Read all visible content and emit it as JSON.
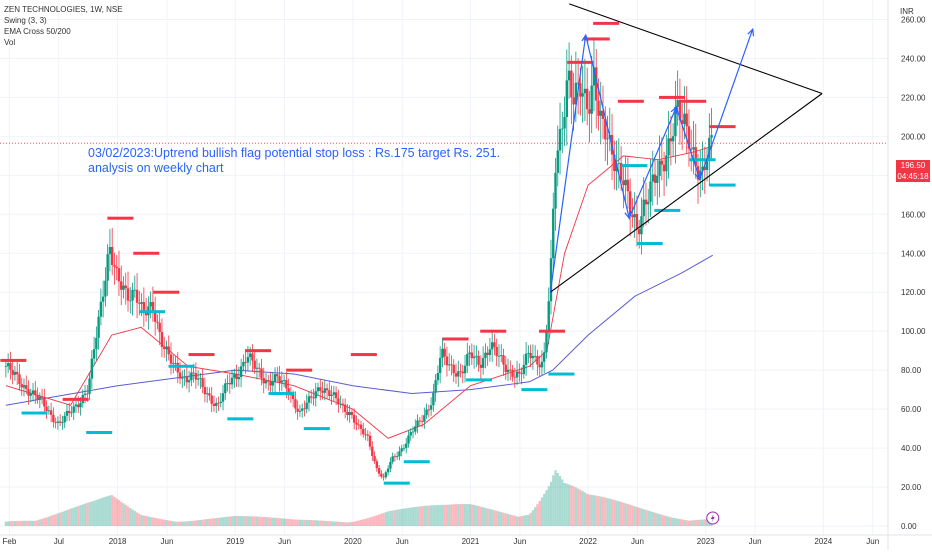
{
  "header": {
    "symbol": "ZEN TECHNOLOGIES, 1W, NSE",
    "indicators": [
      "Swing (3, 3)",
      "EMA Cross 50/200",
      "Vol"
    ]
  },
  "annotation": {
    "line1": "03/02/2023:Uptrend bullish flag potential stop loss : Rs.175 target Rs. 251.",
    "line2": "analysis on weekly chart"
  },
  "price_tag": {
    "price": "196.50",
    "countdown": "04:45:18"
  },
  "colors": {
    "up": "#089981",
    "down": "#f23645",
    "ema50": "#f23645",
    "ema200": "#5b5bd6",
    "swing_high": "#f23645",
    "swing_low": "#00bcd4",
    "drawing_blue": "#2962ff",
    "drawing_black": "#000000",
    "price_line": "#f23645"
  },
  "chart_data": {
    "type": "candlestick",
    "title": "ZEN TECHNOLOGIES, 1W, NSE",
    "y_axis": {
      "unit": "INR",
      "ylim": [
        0,
        270
      ],
      "ticks": [
        "260.00",
        "240.00",
        "220.00",
        "200.00",
        "180.00",
        "160.00",
        "140.00",
        "120.00",
        "100.00",
        "80.00",
        "60.00",
        "40.00",
        "20.00",
        "0.00"
      ]
    },
    "x_axis": {
      "ticks": [
        {
          "label": "Feb",
          "t": 2017.08
        },
        {
          "label": "Jul",
          "t": 2017.5
        },
        {
          "label": "2018",
          "t": 2018.0
        },
        {
          "label": "Jun",
          "t": 2018.42
        },
        {
          "label": "2019",
          "t": 2019.0
        },
        {
          "label": "Jun",
          "t": 2019.42
        },
        {
          "label": "2020",
          "t": 2020.0
        },
        {
          "label": "Jun",
          "t": 2020.42
        },
        {
          "label": "2021",
          "t": 2021.0
        },
        {
          "label": "Jun",
          "t": 2021.42
        },
        {
          "label": "2022",
          "t": 2022.0
        },
        {
          "label": "Jun",
          "t": 2022.42
        },
        {
          "label": "2023",
          "t": 2023.0
        },
        {
          "label": "Jun",
          "t": 2023.42
        },
        {
          "label": "2024",
          "t": 2024.0
        },
        {
          "label": "Jun",
          "t": 2024.42
        }
      ]
    },
    "last_price": 196.5,
    "close_path": [
      [
        2017.05,
        82
      ],
      [
        2017.2,
        72
      ],
      [
        2017.35,
        64
      ],
      [
        2017.5,
        52
      ],
      [
        2017.62,
        60
      ],
      [
        2017.75,
        70
      ],
      [
        2017.85,
        110
      ],
      [
        2017.93,
        145
      ],
      [
        2018.0,
        125
      ],
      [
        2018.08,
        118
      ],
      [
        2018.15,
        122
      ],
      [
        2018.22,
        108
      ],
      [
        2018.3,
        112
      ],
      [
        2018.38,
        95
      ],
      [
        2018.47,
        82
      ],
      [
        2018.55,
        76
      ],
      [
        2018.65,
        78
      ],
      [
        2018.75,
        68
      ],
      [
        2018.85,
        62
      ],
      [
        2018.93,
        72
      ],
      [
        2019.02,
        78
      ],
      [
        2019.1,
        88
      ],
      [
        2019.18,
        80
      ],
      [
        2019.27,
        74
      ],
      [
        2019.35,
        76
      ],
      [
        2019.45,
        70
      ],
      [
        2019.55,
        58
      ],
      [
        2019.63,
        64
      ],
      [
        2019.72,
        72
      ],
      [
        2019.8,
        68
      ],
      [
        2019.9,
        62
      ],
      [
        2019.98,
        58
      ],
      [
        2020.05,
        50
      ],
      [
        2020.13,
        45
      ],
      [
        2020.2,
        30
      ],
      [
        2020.26,
        24
      ],
      [
        2020.33,
        34
      ],
      [
        2020.42,
        40
      ],
      [
        2020.5,
        48
      ],
      [
        2020.6,
        56
      ],
      [
        2020.68,
        66
      ],
      [
        2020.75,
        88
      ],
      [
        2020.83,
        82
      ],
      [
        2020.92,
        78
      ],
      [
        2021.0,
        88
      ],
      [
        2021.08,
        84
      ],
      [
        2021.17,
        92
      ],
      [
        2021.25,
        86
      ],
      [
        2021.33,
        80
      ],
      [
        2021.42,
        76
      ],
      [
        2021.5,
        90
      ],
      [
        2021.56,
        86
      ],
      [
        2021.62,
        82
      ],
      [
        2021.68,
        125
      ],
      [
        2021.72,
        185
      ],
      [
        2021.77,
        205
      ],
      [
        2021.83,
        232
      ],
      [
        2021.88,
        215
      ],
      [
        2021.93,
        225
      ],
      [
        2022.0,
        218
      ],
      [
        2022.05,
        232
      ],
      [
        2022.1,
        206
      ],
      [
        2022.17,
        198
      ],
      [
        2022.24,
        188
      ],
      [
        2022.3,
        178
      ],
      [
        2022.36,
        160
      ],
      [
        2022.42,
        152
      ],
      [
        2022.48,
        168
      ],
      [
        2022.55,
        175
      ],
      [
        2022.62,
        182
      ],
      [
        2022.68,
        196
      ],
      [
        2022.75,
        215
      ],
      [
        2022.8,
        206
      ],
      [
        2022.86,
        198
      ],
      [
        2022.92,
        188
      ],
      [
        2022.97,
        180
      ],
      [
        2023.02,
        190
      ],
      [
        2023.06,
        196.5
      ]
    ],
    "ema50": [
      [
        2017.05,
        72
      ],
      [
        2017.6,
        62
      ],
      [
        2017.95,
        98
      ],
      [
        2018.2,
        102
      ],
      [
        2018.6,
        82
      ],
      [
        2019.0,
        78
      ],
      [
        2019.5,
        72
      ],
      [
        2020.0,
        60
      ],
      [
        2020.3,
        45
      ],
      [
        2020.6,
        52
      ],
      [
        2021.0,
        72
      ],
      [
        2021.5,
        82
      ],
      [
        2021.65,
        90
      ],
      [
        2021.8,
        140
      ],
      [
        2022.0,
        175
      ],
      [
        2022.3,
        190
      ],
      [
        2022.6,
        188
      ],
      [
        2022.9,
        192
      ],
      [
        2023.06,
        195
      ]
    ],
    "ema200": [
      [
        2017.05,
        62
      ],
      [
        2018.0,
        72
      ],
      [
        2019.0,
        80
      ],
      [
        2019.5,
        78
      ],
      [
        2020.0,
        72
      ],
      [
        2020.5,
        68
      ],
      [
        2021.0,
        70
      ],
      [
        2021.5,
        74
      ],
      [
        2021.7,
        80
      ],
      [
        2022.0,
        98
      ],
      [
        2022.4,
        118
      ],
      [
        2022.8,
        130
      ],
      [
        2023.06,
        139
      ]
    ],
    "swing_highs": [
      [
        2017.02,
        85
      ],
      [
        2017.55,
        65
      ],
      [
        2017.93,
        158
      ],
      [
        2018.15,
        140
      ],
      [
        2018.32,
        120
      ],
      [
        2018.62,
        88
      ],
      [
        2019.1,
        90
      ],
      [
        2019.45,
        80
      ],
      [
        2020.0,
        88
      ],
      [
        2020.78,
        96
      ],
      [
        2021.1,
        100
      ],
      [
        2021.6,
        100
      ],
      [
        2021.84,
        238
      ],
      [
        2021.98,
        250
      ],
      [
        2022.06,
        258
      ],
      [
        2022.27,
        218
      ],
      [
        2022.62,
        220
      ],
      [
        2022.8,
        218
      ],
      [
        2023.05,
        205
      ]
    ],
    "swing_lows": [
      [
        2017.2,
        58
      ],
      [
        2017.75,
        48
      ],
      [
        2018.2,
        110
      ],
      [
        2018.45,
        82
      ],
      [
        2018.95,
        55
      ],
      [
        2019.3,
        68
      ],
      [
        2019.6,
        50
      ],
      [
        2020.28,
        22
      ],
      [
        2020.45,
        33
      ],
      [
        2020.98,
        75
      ],
      [
        2021.45,
        70
      ],
      [
        2021.68,
        78
      ],
      [
        2022.3,
        185
      ],
      [
        2022.43,
        145
      ],
      [
        2022.58,
        162
      ],
      [
        2022.88,
        188
      ],
      [
        2023.05,
        175
      ]
    ],
    "volume_path": [
      [
        2017.05,
        0.15
      ],
      [
        2017.3,
        0.1
      ],
      [
        2017.8,
        0.35
      ],
      [
        2017.95,
        0.45
      ],
      [
        2018.2,
        0.2
      ],
      [
        2018.6,
        0.12
      ],
      [
        2019.0,
        0.15
      ],
      [
        2019.5,
        0.1
      ],
      [
        2020.0,
        0.12
      ],
      [
        2020.3,
        0.25
      ],
      [
        2020.8,
        0.3
      ],
      [
        2021.0,
        0.35
      ],
      [
        2021.5,
        0.3
      ],
      [
        2021.68,
        0.8
      ],
      [
        2021.72,
        1.0
      ],
      [
        2021.8,
        0.7
      ],
      [
        2022.0,
        0.45
      ],
      [
        2022.4,
        0.3
      ],
      [
        2022.7,
        0.2
      ],
      [
        2023.06,
        0.15
      ]
    ],
    "drawings": {
      "triangle_upper": [
        [
          2021.84,
          268
        ],
        [
          2023.99,
          222
        ]
      ],
      "triangle_lower": [
        [
          2021.68,
          120
        ],
        [
          2023.99,
          222
        ]
      ],
      "forecast_path": [
        [
          2021.68,
          120
        ],
        [
          2021.98,
          252
        ],
        [
          2022.35,
          158
        ],
        [
          2022.75,
          215
        ],
        [
          2022.95,
          178
        ],
        [
          2023.4,
          255
        ]
      ]
    }
  }
}
